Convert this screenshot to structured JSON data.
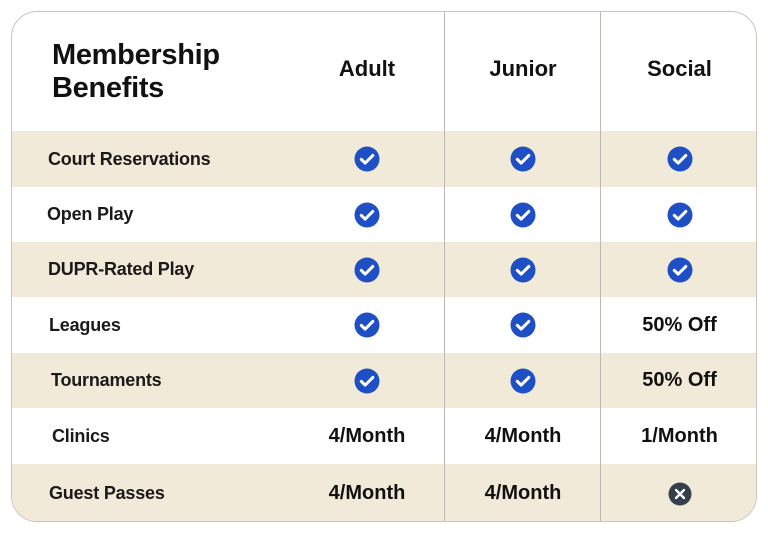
{
  "table": {
    "title_line1": "Membership",
    "title_line2": "Benefits",
    "columns": [
      "Adult",
      "Junior",
      "Social"
    ],
    "rows": [
      {
        "label": "Court Reservations",
        "values": [
          "check",
          "check",
          "check"
        ]
      },
      {
        "label": "Open Play",
        "values": [
          "check",
          "check",
          "check"
        ]
      },
      {
        "label": "DUPR-Rated Play",
        "values": [
          "check",
          "check",
          "check"
        ]
      },
      {
        "label": "Leagues",
        "values": [
          "check",
          "check",
          "50% Off"
        ]
      },
      {
        "label": "Tournaments",
        "values": [
          "check",
          "check",
          "50% Off"
        ]
      },
      {
        "label": "Clinics",
        "values": [
          "4/Month",
          "4/Month",
          "1/Month"
        ]
      },
      {
        "label": "Guest Passes",
        "values": [
          "4/Month",
          "4/Month",
          "cross"
        ]
      }
    ]
  },
  "icons": {
    "check": "check-circle-icon",
    "cross": "x-circle-icon"
  },
  "colors": {
    "check": "#1f4fc4",
    "cross": "#36404a",
    "shade": "#f1ead9",
    "border": "#c9c5bd"
  }
}
